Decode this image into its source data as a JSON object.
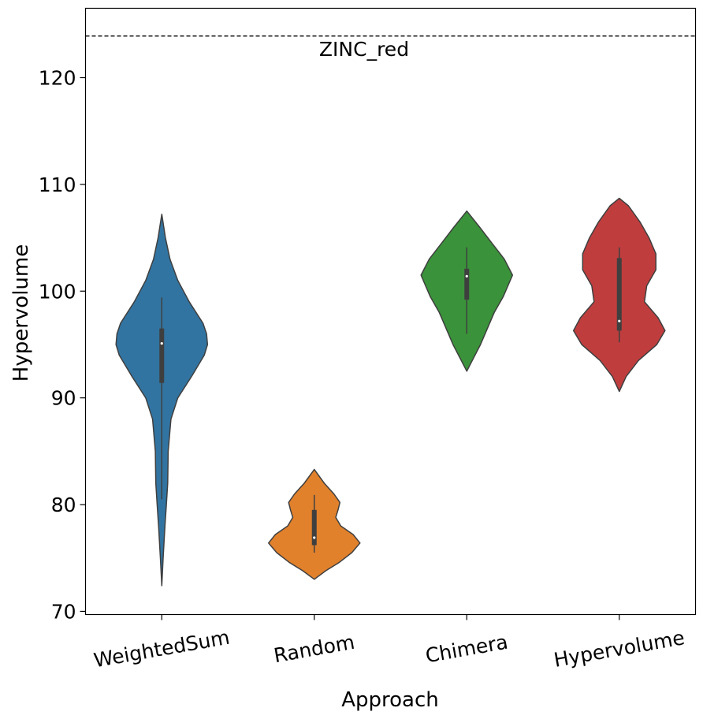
{
  "chart_data": {
    "type": "violin",
    "xlabel": "Approach",
    "ylabel": "Hypervolume",
    "ylim": [
      69.7,
      126.5
    ],
    "yticks": [
      70,
      80,
      90,
      100,
      110,
      120
    ],
    "categories": [
      "WeightedSum",
      "Random",
      "Chimera",
      "Hypervolume"
    ],
    "reference_line": {
      "label": "ZINC_red",
      "value": 123.9,
      "style": "dashed"
    },
    "series": [
      {
        "category": "WeightedSum",
        "color": "#3274a1",
        "min": 72.4,
        "max": 107.2,
        "whisker_low": 80.5,
        "whisker_high": 99.4,
        "q1": 91.4,
        "median": 95.1,
        "q3": 96.5,
        "density": [
          [
            72.4,
            0.0
          ],
          [
            75,
            0.03
          ],
          [
            78,
            0.07
          ],
          [
            80,
            0.1
          ],
          [
            82,
            0.13
          ],
          [
            85,
            0.14
          ],
          [
            88,
            0.2
          ],
          [
            90,
            0.35
          ],
          [
            92,
            0.65
          ],
          [
            94,
            0.93
          ],
          [
            95,
            1.0
          ],
          [
            96,
            0.98
          ],
          [
            97,
            0.9
          ],
          [
            99,
            0.6
          ],
          [
            101,
            0.35
          ],
          [
            103,
            0.18
          ],
          [
            105,
            0.08
          ],
          [
            107.2,
            0.0
          ]
        ]
      },
      {
        "category": "Random",
        "color": "#e1812c",
        "min": 73.0,
        "max": 83.3,
        "whisker_low": 75.5,
        "whisker_high": 80.9,
        "q1": 76.2,
        "median": 76.9,
        "q3": 79.5,
        "density": [
          [
            73.0,
            0.0
          ],
          [
            73.8,
            0.25
          ],
          [
            74.6,
            0.55
          ],
          [
            75.5,
            0.82
          ],
          [
            76.4,
            1.0
          ],
          [
            77.2,
            0.85
          ],
          [
            78.0,
            0.58
          ],
          [
            78.8,
            0.47
          ],
          [
            79.5,
            0.52
          ],
          [
            80.2,
            0.56
          ],
          [
            81.0,
            0.43
          ],
          [
            82.0,
            0.22
          ],
          [
            83.3,
            0.0
          ]
        ]
      },
      {
        "category": "Chimera",
        "color": "#3a923a",
        "min": 92.5,
        "max": 107.5,
        "whisker_low": 96.0,
        "whisker_high": 104.1,
        "q1": 99.2,
        "median": 101.4,
        "q3": 102.1,
        "density": [
          [
            92.5,
            0.0
          ],
          [
            93.5,
            0.12
          ],
          [
            95,
            0.3
          ],
          [
            96.5,
            0.45
          ],
          [
            98,
            0.6
          ],
          [
            99.5,
            0.8
          ],
          [
            101.5,
            1.0
          ],
          [
            103,
            0.82
          ],
          [
            104.5,
            0.55
          ],
          [
            106,
            0.28
          ],
          [
            107.5,
            0.0
          ]
        ]
      },
      {
        "category": "Hypervolume",
        "color": "#c03d3e",
        "min": 90.6,
        "max": 108.7,
        "whisker_low": 95.2,
        "whisker_high": 104.1,
        "q1": 96.3,
        "median": 97.2,
        "q3": 103.1,
        "density": [
          [
            90.6,
            0.0
          ],
          [
            92,
            0.15
          ],
          [
            93.5,
            0.42
          ],
          [
            95,
            0.82
          ],
          [
            96.3,
            1.0
          ],
          [
            97.5,
            0.85
          ],
          [
            99,
            0.55
          ],
          [
            100.5,
            0.6
          ],
          [
            102,
            0.8
          ],
          [
            103.5,
            0.8
          ],
          [
            105,
            0.65
          ],
          [
            106.5,
            0.45
          ],
          [
            108,
            0.2
          ],
          [
            108.7,
            0.0
          ]
        ]
      }
    ]
  }
}
